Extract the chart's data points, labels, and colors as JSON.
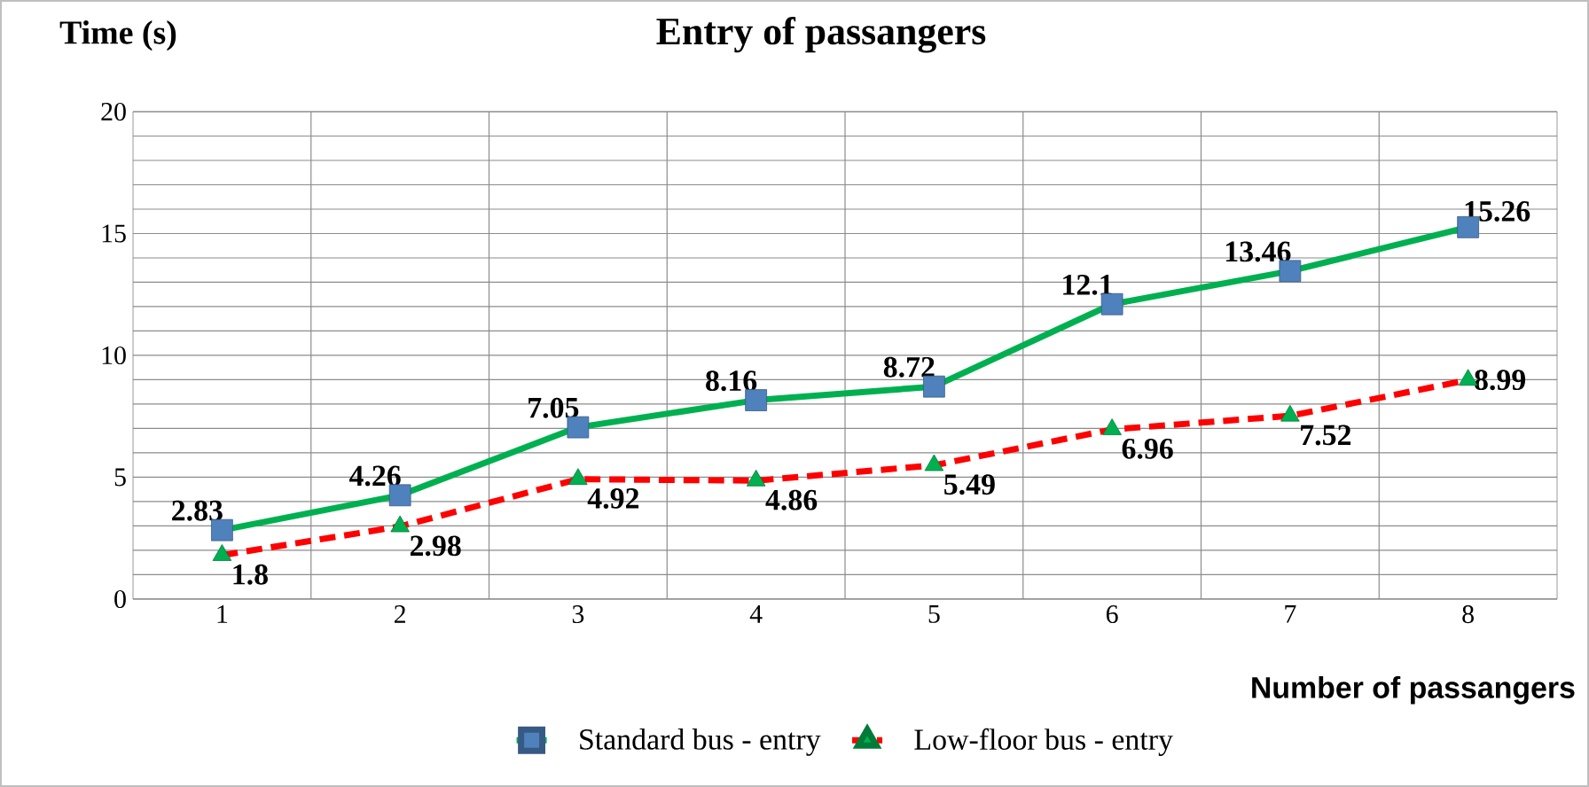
{
  "chart_data": {
    "type": "line",
    "title": "Entry of passangers",
    "xlabel": "Number of passangers",
    "ylabel": "Time (s)",
    "categories": [
      "1",
      "2",
      "3",
      "4",
      "5",
      "6",
      "7",
      "8"
    ],
    "series": [
      {
        "name": "Standard bus - entry",
        "color": "#00b050",
        "marker": "square",
        "line_style": "solid",
        "colors": [
          "#4f81bd",
          "#4f81bd",
          "#4f81bd",
          "#4f81bd",
          "#4f81bd",
          "#4f81bd",
          "#4f81bd",
          "#4f81bd"
        ],
        "values": [
          2.83,
          4.26,
          7.05,
          8.16,
          8.72,
          12.1,
          13.46,
          15.26
        ]
      },
      {
        "name": "Low-floor bus - entry",
        "color": "#ff0000",
        "marker": "triangle",
        "line_style": "dashed",
        "colors": [
          "#00b050",
          "#00b050",
          "#00b050",
          "#00b050",
          "#00b050",
          "#00b050",
          "#00b050",
          "#00b050"
        ],
        "values": [
          1.8,
          2.98,
          4.92,
          4.86,
          5.49,
          6.96,
          7.52,
          8.99
        ]
      }
    ],
    "ylim": [
      0,
      20
    ],
    "yticks": [
      0,
      {
        "value": 1,
        "label": null
      },
      {
        "value": 2,
        "label": null
      },
      {
        "value": 3,
        "label": null
      },
      {
        "value": 4,
        "label": null
      },
      5,
      {
        "value": 6,
        "label": null
      },
      {
        "value": 7,
        "label": null
      },
      {
        "value": 8,
        "label": null
      },
      {
        "value": 9,
        "label": null
      },
      10,
      {
        "value": 11,
        "label": null
      },
      {
        "value": 12,
        "label": null
      },
      {
        "value": 13,
        "label": null
      },
      {
        "value": 14,
        "label": null
      },
      15,
      {
        "value": 16,
        "label": null
      },
      {
        "value": 17,
        "label": null
      },
      {
        "value": 18,
        "label": null
      },
      {
        "value": 19,
        "label": null
      },
      20
    ],
    "grid": true,
    "legend": "bottom",
    "data_labels": true
  }
}
